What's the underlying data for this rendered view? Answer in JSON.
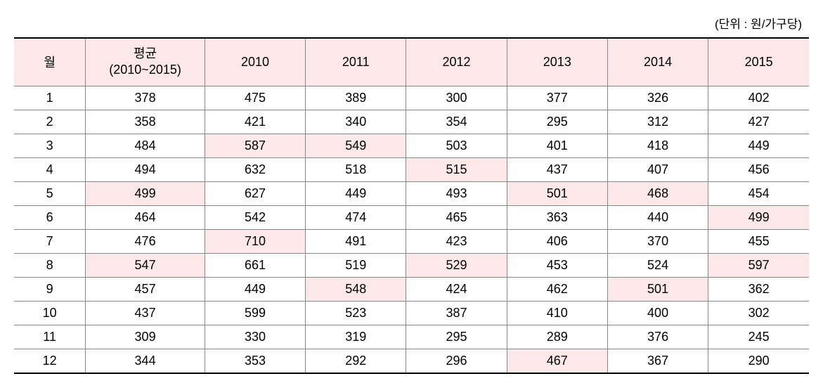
{
  "unit_label": "(단위 : 원/가구당)",
  "table": {
    "type": "table",
    "columns": [
      {
        "key": "month",
        "label": "월",
        "class": "col-month"
      },
      {
        "key": "avg",
        "label": "평균",
        "sublabel": "(2010~2015)",
        "class": "col-avg"
      },
      {
        "key": "y2010",
        "label": "2010",
        "class": "col-year"
      },
      {
        "key": "y2011",
        "label": "2011",
        "class": "col-year"
      },
      {
        "key": "y2012",
        "label": "2012",
        "class": "col-year"
      },
      {
        "key": "y2013",
        "label": "2013",
        "class": "col-year"
      },
      {
        "key": "y2014",
        "label": "2014",
        "class": "col-year"
      },
      {
        "key": "y2015",
        "label": "2015",
        "class": "col-year"
      }
    ],
    "rows": [
      {
        "month": "1",
        "avg": "378",
        "y2010": "475",
        "y2011": "389",
        "y2012": "300",
        "y2013": "377",
        "y2014": "326",
        "y2015": "402",
        "highlights": []
      },
      {
        "month": "2",
        "avg": "358",
        "y2010": "421",
        "y2011": "340",
        "y2012": "354",
        "y2013": "295",
        "y2014": "312",
        "y2015": "427",
        "highlights": []
      },
      {
        "month": "3",
        "avg": "484",
        "y2010": "587",
        "y2011": "549",
        "y2012": "503",
        "y2013": "401",
        "y2014": "418",
        "y2015": "449",
        "highlights": [
          "y2010",
          "y2011"
        ]
      },
      {
        "month": "4",
        "avg": "494",
        "y2010": "632",
        "y2011": "518",
        "y2012": "515",
        "y2013": "437",
        "y2014": "407",
        "y2015": "456",
        "highlights": [
          "y2012"
        ]
      },
      {
        "month": "5",
        "avg": "499",
        "y2010": "627",
        "y2011": "449",
        "y2012": "493",
        "y2013": "501",
        "y2014": "468",
        "y2015": "454",
        "highlights": [
          "avg",
          "y2013",
          "y2014"
        ]
      },
      {
        "month": "6",
        "avg": "464",
        "y2010": "542",
        "y2011": "474",
        "y2012": "465",
        "y2013": "363",
        "y2014": "440",
        "y2015": "499",
        "highlights": [
          "y2015"
        ]
      },
      {
        "month": "7",
        "avg": "476",
        "y2010": "710",
        "y2011": "491",
        "y2012": "423",
        "y2013": "406",
        "y2014": "370",
        "y2015": "455",
        "highlights": [
          "y2010"
        ]
      },
      {
        "month": "8",
        "avg": "547",
        "y2010": "661",
        "y2011": "519",
        "y2012": "529",
        "y2013": "453",
        "y2014": "524",
        "y2015": "597",
        "highlights": [
          "avg",
          "y2012",
          "y2015"
        ]
      },
      {
        "month": "9",
        "avg": "457",
        "y2010": "449",
        "y2011": "548",
        "y2012": "424",
        "y2013": "462",
        "y2014": "501",
        "y2015": "362",
        "highlights": [
          "y2011",
          "y2014"
        ]
      },
      {
        "month": "10",
        "avg": "437",
        "y2010": "599",
        "y2011": "523",
        "y2012": "387",
        "y2013": "410",
        "y2014": "400",
        "y2015": "302",
        "highlights": []
      },
      {
        "month": "11",
        "avg": "309",
        "y2010": "330",
        "y2011": "319",
        "y2012": "295",
        "y2013": "289",
        "y2014": "376",
        "y2015": "245",
        "highlights": []
      },
      {
        "month": "12",
        "avg": "344",
        "y2010": "353",
        "y2011": "292",
        "y2012": "296",
        "y2013": "467",
        "y2014": "367",
        "y2015": "290",
        "highlights": [
          "y2013"
        ]
      }
    ],
    "header_bg_color": "#fce8e8",
    "highlight_bg_color": "#fce8e8",
    "background_color": "#ffffff",
    "border_color": "#888888",
    "border_top_bottom_color": "#000000"
  }
}
